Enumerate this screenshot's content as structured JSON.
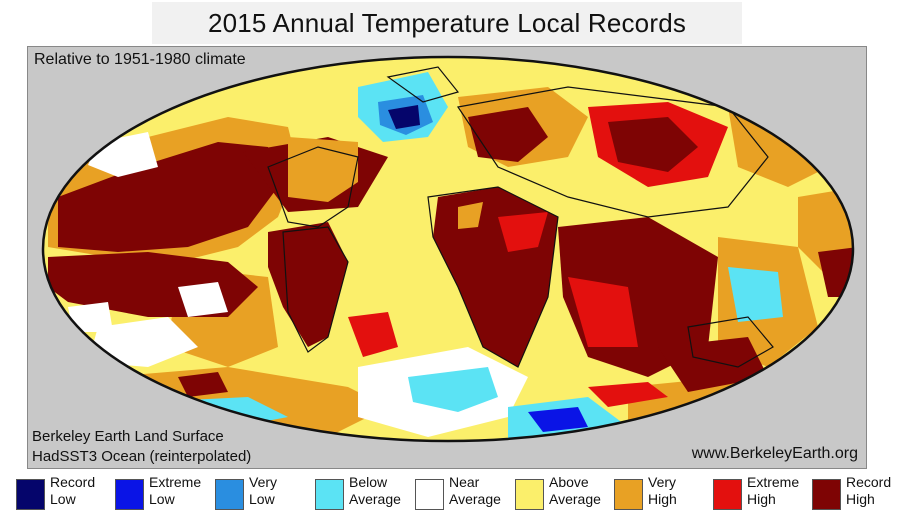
{
  "header": {
    "title": "2015 Annual Temperature Local Records"
  },
  "map": {
    "subtitle": "Relative to 1951-1980 climate",
    "credit_line1": "Berkeley Earth Land Surface",
    "credit_line2": "HadSST3 Ocean (reinterpolated)",
    "website": "www.BerkeleyEarth.org",
    "background_color": "#c8c8c8"
  },
  "legend": [
    {
      "line1": "Record",
      "line2": "Low",
      "color": "#05056b"
    },
    {
      "line1": "Extreme",
      "line2": "Low",
      "color": "#0a14e6"
    },
    {
      "line1": "Very",
      "line2": "Low",
      "color": "#2a8ee0"
    },
    {
      "line1": "Below",
      "line2": "Average",
      "color": "#5be3f4"
    },
    {
      "line1": "Near",
      "line2": "Average",
      "color": "#ffffff"
    },
    {
      "line1": "Above",
      "line2": "Average",
      "color": "#fbef6b"
    },
    {
      "line1": "Very",
      "line2": "High",
      "color": "#e8a124"
    },
    {
      "line1": "Extreme",
      "line2": "High",
      "color": "#e3100e"
    },
    {
      "line1": "Record",
      "line2": "High",
      "color": "#7e0404"
    }
  ]
}
